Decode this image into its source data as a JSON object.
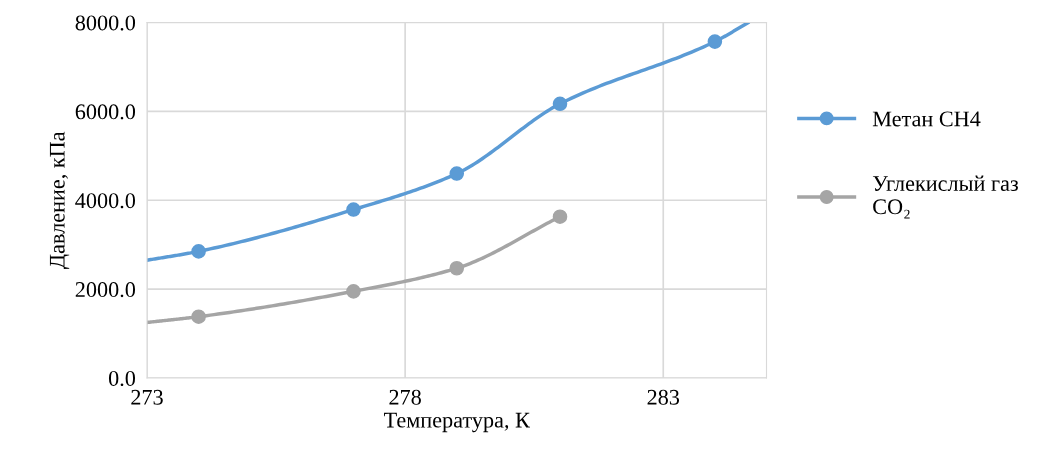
{
  "chart_data": {
    "type": "line",
    "xlabel": "Температура, К",
    "ylabel": "Давление, кПа",
    "series": [
      {
        "color": "#5b9bd5",
        "x": [
          273,
          274,
          277,
          279,
          281,
          284,
          284.65
        ],
        "values": [
          2650,
          2850,
          3790,
          4600,
          6170,
          7570,
          8000
        ],
        "marker": "none"
      },
      {
        "type": "scatter",
        "name": "Метан CH4",
        "color": "#5b9bd5",
        "x": [
          274,
          277,
          279,
          281,
          284
        ],
        "values": [
          2850,
          3790,
          4600,
          6170,
          7570
        ],
        "marker": "circle"
      },
      {
        "color": "#a5a5a5",
        "x": [
          273,
          274,
          277,
          279,
          281
        ],
        "values": [
          1250,
          1380,
          1950,
          2470,
          3630
        ],
        "marker": "none"
      },
      {
        "type": "scatter",
        "name": "Углекислый газ\nCO₂",
        "color": "#a5a5a5",
        "x": [
          274,
          277,
          279,
          281
        ],
        "values": [
          1380,
          1950,
          2470,
          3630
        ],
        "marker": "circle"
      }
    ],
    "xlim": [
      273,
      285
    ],
    "xticks": [
      273,
      278,
      283
    ],
    "ylim": [
      0,
      8000
    ],
    "yticks": [
      {
        "value": 0,
        "label": "0.0"
      },
      {
        "value": 2000,
        "label": "2000.0"
      },
      {
        "value": 4000,
        "label": "4000.0"
      },
      {
        "value": 6000,
        "label": "6000.0"
      },
      {
        "value": 8000,
        "label": "8000.0"
      }
    ],
    "grid": true,
    "legend": "right"
  }
}
